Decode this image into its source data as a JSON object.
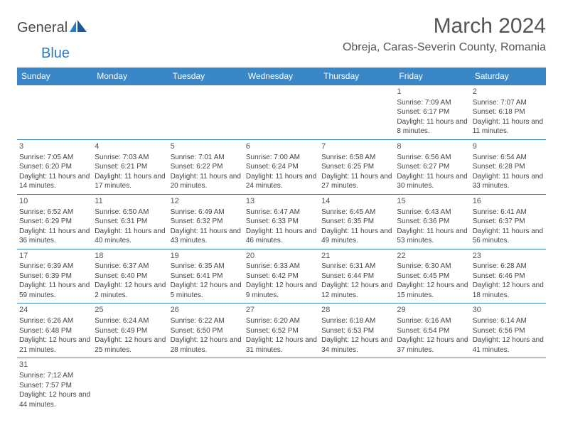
{
  "logo": {
    "part1": "General",
    "part2": "Blue"
  },
  "title": "March 2024",
  "location": "Obreja, Caras-Severin County, Romania",
  "colors": {
    "header_bg": "#3a87c7",
    "header_text": "#ffffff",
    "border": "#3a87c7",
    "body_text": "#444444",
    "title_text": "#555555",
    "logo_blue": "#2d7bbf",
    "logo_gray": "#4a4a4a"
  },
  "weekdays": [
    "Sunday",
    "Monday",
    "Tuesday",
    "Wednesday",
    "Thursday",
    "Friday",
    "Saturday"
  ],
  "firstWeekdayIndex": 5,
  "daysInMonth": 31,
  "days": {
    "1": {
      "sunrise": "7:09 AM",
      "sunset": "6:17 PM",
      "daylight": "11 hours and 8 minutes."
    },
    "2": {
      "sunrise": "7:07 AM",
      "sunset": "6:18 PM",
      "daylight": "11 hours and 11 minutes."
    },
    "3": {
      "sunrise": "7:05 AM",
      "sunset": "6:20 PM",
      "daylight": "11 hours and 14 minutes."
    },
    "4": {
      "sunrise": "7:03 AM",
      "sunset": "6:21 PM",
      "daylight": "11 hours and 17 minutes."
    },
    "5": {
      "sunrise": "7:01 AM",
      "sunset": "6:22 PM",
      "daylight": "11 hours and 20 minutes."
    },
    "6": {
      "sunrise": "7:00 AM",
      "sunset": "6:24 PM",
      "daylight": "11 hours and 24 minutes."
    },
    "7": {
      "sunrise": "6:58 AM",
      "sunset": "6:25 PM",
      "daylight": "11 hours and 27 minutes."
    },
    "8": {
      "sunrise": "6:56 AM",
      "sunset": "6:27 PM",
      "daylight": "11 hours and 30 minutes."
    },
    "9": {
      "sunrise": "6:54 AM",
      "sunset": "6:28 PM",
      "daylight": "11 hours and 33 minutes."
    },
    "10": {
      "sunrise": "6:52 AM",
      "sunset": "6:29 PM",
      "daylight": "11 hours and 36 minutes."
    },
    "11": {
      "sunrise": "6:50 AM",
      "sunset": "6:31 PM",
      "daylight": "11 hours and 40 minutes."
    },
    "12": {
      "sunrise": "6:49 AM",
      "sunset": "6:32 PM",
      "daylight": "11 hours and 43 minutes."
    },
    "13": {
      "sunrise": "6:47 AM",
      "sunset": "6:33 PM",
      "daylight": "11 hours and 46 minutes."
    },
    "14": {
      "sunrise": "6:45 AM",
      "sunset": "6:35 PM",
      "daylight": "11 hours and 49 minutes."
    },
    "15": {
      "sunrise": "6:43 AM",
      "sunset": "6:36 PM",
      "daylight": "11 hours and 53 minutes."
    },
    "16": {
      "sunrise": "6:41 AM",
      "sunset": "6:37 PM",
      "daylight": "11 hours and 56 minutes."
    },
    "17": {
      "sunrise": "6:39 AM",
      "sunset": "6:39 PM",
      "daylight": "11 hours and 59 minutes."
    },
    "18": {
      "sunrise": "6:37 AM",
      "sunset": "6:40 PM",
      "daylight": "12 hours and 2 minutes."
    },
    "19": {
      "sunrise": "6:35 AM",
      "sunset": "6:41 PM",
      "daylight": "12 hours and 5 minutes."
    },
    "20": {
      "sunrise": "6:33 AM",
      "sunset": "6:42 PM",
      "daylight": "12 hours and 9 minutes."
    },
    "21": {
      "sunrise": "6:31 AM",
      "sunset": "6:44 PM",
      "daylight": "12 hours and 12 minutes."
    },
    "22": {
      "sunrise": "6:30 AM",
      "sunset": "6:45 PM",
      "daylight": "12 hours and 15 minutes."
    },
    "23": {
      "sunrise": "6:28 AM",
      "sunset": "6:46 PM",
      "daylight": "12 hours and 18 minutes."
    },
    "24": {
      "sunrise": "6:26 AM",
      "sunset": "6:48 PM",
      "daylight": "12 hours and 21 minutes."
    },
    "25": {
      "sunrise": "6:24 AM",
      "sunset": "6:49 PM",
      "daylight": "12 hours and 25 minutes."
    },
    "26": {
      "sunrise": "6:22 AM",
      "sunset": "6:50 PM",
      "daylight": "12 hours and 28 minutes."
    },
    "27": {
      "sunrise": "6:20 AM",
      "sunset": "6:52 PM",
      "daylight": "12 hours and 31 minutes."
    },
    "28": {
      "sunrise": "6:18 AM",
      "sunset": "6:53 PM",
      "daylight": "12 hours and 34 minutes."
    },
    "29": {
      "sunrise": "6:16 AM",
      "sunset": "6:54 PM",
      "daylight": "12 hours and 37 minutes."
    },
    "30": {
      "sunrise": "6:14 AM",
      "sunset": "6:56 PM",
      "daylight": "12 hours and 41 minutes."
    },
    "31": {
      "sunrise": "7:12 AM",
      "sunset": "7:57 PM",
      "daylight": "12 hours and 44 minutes."
    }
  },
  "labels": {
    "sunrise": "Sunrise:",
    "sunset": "Sunset:",
    "daylight": "Daylight:"
  }
}
